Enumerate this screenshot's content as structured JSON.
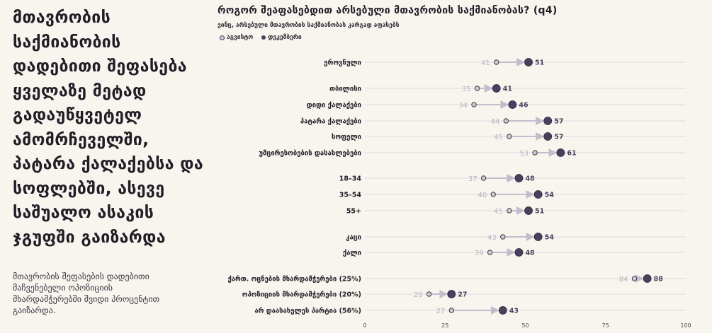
{
  "headline": "მთავრობის საქმიანობის დადებითი შეფასება ყველაზე მეტად გადაუწყვეტელ ამომრჩეველში, პატარა ქალაქებსა და სოფლებში, ასევე საშუალო ასაკის ჯგუფში გაიზარდა",
  "description": "მთავრობის შეფასების დადებითი მაჩვენებელი ოპოზიციის მხარდამჭერებში შვიდი პროცენტით გაიზარდა.",
  "colors": {
    "background": "#f8f5ef",
    "august_dot": "#cfc9d6",
    "december_dot": "#4b3f5f",
    "arrow": "#c4bccd",
    "gridline": "#d4cfd8"
  },
  "chart_data": {
    "type": "dumbbell",
    "title": "როგორ შეაფასებდით არსებული მთავრობის საქმიანობას? (q4)",
    "subtitle": "ვინც, არსებული მთავრობის საქმიანობას კარგად აფასებს",
    "xlim": [
      0,
      100
    ],
    "x_ticks": [
      0,
      25,
      50,
      75,
      100
    ],
    "legend": {
      "position": "top-left",
      "items": [
        {
          "name": "აგვისტო",
          "icon": "open-dot"
        },
        {
          "name": "დეკემბერი",
          "icon": "filled-dot"
        }
      ]
    },
    "series": [
      {
        "name": "აგვისტო",
        "values": [
          41,
          35,
          34,
          44,
          45,
          53,
          37,
          40,
          45,
          43,
          39,
          84,
          20,
          27
        ]
      },
      {
        "name": "დეკემბერი",
        "values": [
          51,
          41,
          46,
          57,
          57,
          61,
          48,
          54,
          51,
          54,
          48,
          88,
          27,
          43
        ]
      }
    ],
    "groups": [
      {
        "categories": [
          {
            "label": "ეროვნული",
            "aug": 41,
            "dec": 51
          }
        ]
      },
      {
        "categories": [
          {
            "label": "თბილისი",
            "aug": 35,
            "dec": 41
          },
          {
            "label": "დიდი ქალაქები",
            "aug": 34,
            "dec": 46
          },
          {
            "label": "პატარა ქალაქები",
            "aug": 44,
            "dec": 57
          },
          {
            "label": "სოფელი",
            "aug": 45,
            "dec": 57
          },
          {
            "label": "უმცირესობების დასახლებები",
            "aug": 53,
            "dec": 61
          }
        ]
      },
      {
        "categories": [
          {
            "label": "18–34",
            "aug": 37,
            "dec": 48
          },
          {
            "label": "35–54",
            "aug": 40,
            "dec": 54
          },
          {
            "label": "55+",
            "aug": 45,
            "dec": 51
          }
        ]
      },
      {
        "categories": [
          {
            "label": "კაცი",
            "aug": 43,
            "dec": 54
          },
          {
            "label": "ქალი",
            "aug": 39,
            "dec": 48
          }
        ]
      },
      {
        "categories": [
          {
            "label": "ქართ. ოცნების მხარდამჭერები (25%)",
            "aug": 84,
            "dec": 88
          },
          {
            "label": "ოპოზიციის მხარდამჭერები (20%)",
            "aug": 20,
            "dec": 27
          },
          {
            "label": "არ დაასახელეს პარტია (56%)",
            "aug": 27,
            "dec": 43
          }
        ]
      }
    ]
  }
}
